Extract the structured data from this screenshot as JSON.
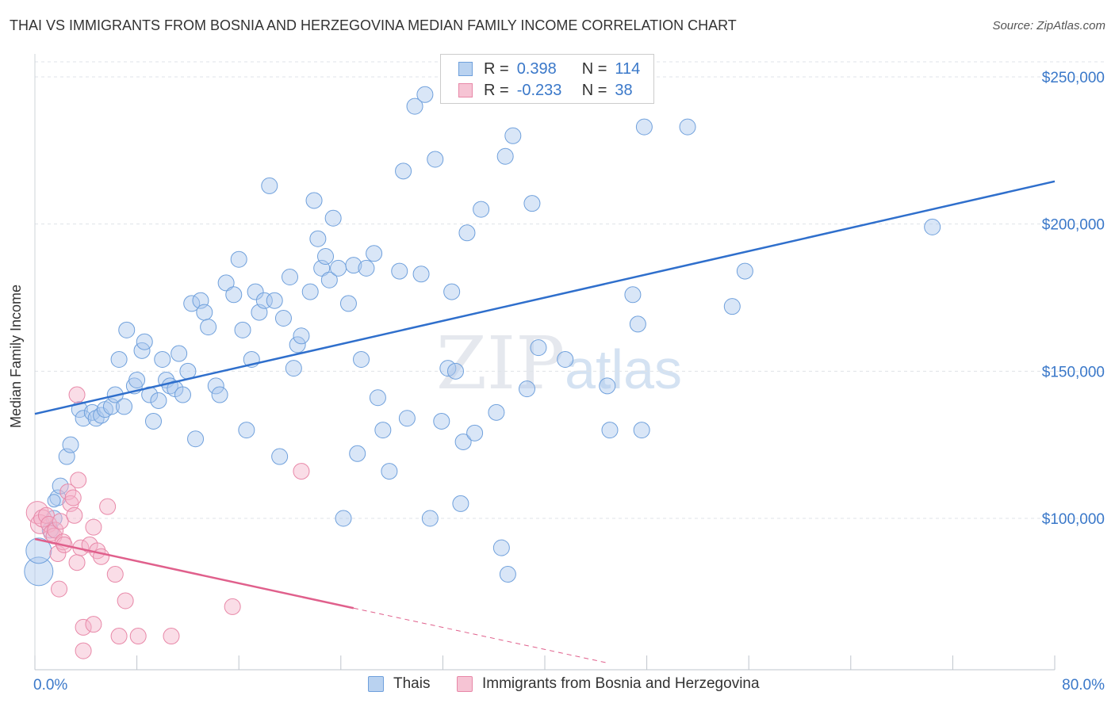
{
  "title": "THAI VS IMMIGRANTS FROM BOSNIA AND HERZEGOVINA MEDIAN FAMILY INCOME CORRELATION CHART",
  "source": "Source: ZipAtlas.com",
  "watermark": {
    "zip": "ZIP",
    "atlas": "atlas"
  },
  "legend": {
    "rows": [
      {
        "r_label": "R =",
        "r_value": "0.398",
        "n_label": "N =",
        "n_value": "114",
        "color": "#6fa0dc",
        "fill": "#b9d2f0"
      },
      {
        "r_label": "R =",
        "r_value": "-0.233",
        "n_label": "N =",
        "n_value": "38",
        "color": "#e888a8",
        "fill": "#f6c4d4"
      }
    ]
  },
  "bottom_legend": {
    "series1": "Thais",
    "series2": "Immigrants from Bosnia and Herzegovina"
  },
  "chart_data": {
    "type": "scatter",
    "title": "THAI VS IMMIGRANTS FROM BOSNIA AND HERZEGOVINA MEDIAN FAMILY INCOME CORRELATION CHART",
    "xlabel": "",
    "ylabel": "Median Family Income",
    "xlim": [
      0,
      80
    ],
    "ylim": [
      55000,
      260000
    ],
    "x_tick_labels": [
      "0.0%",
      "80.0%"
    ],
    "y_ticks": [
      100000,
      150000,
      200000,
      250000
    ],
    "y_tick_labels": [
      "$100,000",
      "$150,000",
      "$200,000",
      "$250,000"
    ],
    "grid": true,
    "legend_position": "top-center",
    "series": [
      {
        "name": "Thais",
        "color": "#6fa0dc",
        "trend": {
          "x": [
            0,
            80
          ],
          "y": [
            135500,
            214500
          ],
          "color": "#2f6fcc"
        },
        "points": [
          [
            0.3,
            82000,
            18
          ],
          [
            0.3,
            89000,
            16
          ],
          [
            1.2,
            96000,
            10
          ],
          [
            1.5,
            100000,
            10
          ],
          [
            1.8,
            107000,
            10
          ],
          [
            2,
            111000,
            10
          ],
          [
            1.5,
            106000,
            8
          ],
          [
            2.5,
            121000,
            10
          ],
          [
            2.8,
            125000,
            10
          ],
          [
            3.5,
            137000,
            10
          ],
          [
            3.8,
            134000,
            10
          ],
          [
            4.5,
            136000,
            10
          ],
          [
            4.8,
            134000,
            10
          ],
          [
            5.2,
            135000,
            10
          ],
          [
            5.5,
            137000,
            10
          ],
          [
            6,
            138000,
            10
          ],
          [
            6.3,
            142000,
            10
          ],
          [
            6.6,
            154000,
            10
          ],
          [
            7,
            138000,
            10
          ],
          [
            7.2,
            164000,
            10
          ],
          [
            7.8,
            145000,
            10
          ],
          [
            8,
            147000,
            10
          ],
          [
            8.4,
            157000,
            10
          ],
          [
            8.6,
            160000,
            10
          ],
          [
            9,
            142000,
            10
          ],
          [
            9.3,
            133000,
            10
          ],
          [
            9.7,
            140000,
            10
          ],
          [
            10,
            154000,
            10
          ],
          [
            10.3,
            147000,
            10
          ],
          [
            10.6,
            145000,
            10
          ],
          [
            11,
            144000,
            10
          ],
          [
            11.3,
            156000,
            10
          ],
          [
            11.6,
            142000,
            10
          ],
          [
            12,
            150000,
            10
          ],
          [
            12.3,
            173000,
            10
          ],
          [
            12.6,
            127000,
            10
          ],
          [
            13,
            174000,
            10
          ],
          [
            13.3,
            170000,
            10
          ],
          [
            13.6,
            165000,
            10
          ],
          [
            14.2,
            145000,
            10
          ],
          [
            14.5,
            142000,
            10
          ],
          [
            15,
            180000,
            10
          ],
          [
            15.6,
            176000,
            10
          ],
          [
            16,
            188000,
            10
          ],
          [
            16.3,
            164000,
            10
          ],
          [
            16.6,
            130000,
            10
          ],
          [
            17,
            154000,
            10
          ],
          [
            17.3,
            177000,
            10
          ],
          [
            17.6,
            170000,
            10
          ],
          [
            18,
            174000,
            10
          ],
          [
            18.4,
            213000,
            10
          ],
          [
            18.8,
            174000,
            10
          ],
          [
            19.2,
            121000,
            10
          ],
          [
            19.5,
            168000,
            10
          ],
          [
            20,
            182000,
            10
          ],
          [
            20.3,
            151000,
            10
          ],
          [
            20.6,
            159000,
            10
          ],
          [
            20.9,
            162000,
            10
          ],
          [
            21.6,
            177000,
            10
          ],
          [
            21.9,
            208000,
            10
          ],
          [
            22.2,
            195000,
            10
          ],
          [
            22.5,
            185000,
            10
          ],
          [
            22.8,
            189000,
            10
          ],
          [
            23.1,
            181000,
            10
          ],
          [
            23.4,
            202000,
            10
          ],
          [
            23.8,
            185000,
            10
          ],
          [
            24.2,
            100000,
            10
          ],
          [
            24.6,
            173000,
            10
          ],
          [
            25,
            186000,
            10
          ],
          [
            25.3,
            122000,
            10
          ],
          [
            25.6,
            154000,
            10
          ],
          [
            26,
            185000,
            10
          ],
          [
            26.6,
            190000,
            10
          ],
          [
            26.9,
            141000,
            10
          ],
          [
            27.3,
            130000,
            10
          ],
          [
            27.8,
            116000,
            10
          ],
          [
            28.6,
            184000,
            10
          ],
          [
            28.9,
            218000,
            10
          ],
          [
            29.2,
            134000,
            10
          ],
          [
            29.8,
            240000,
            10
          ],
          [
            30.3,
            183000,
            10
          ],
          [
            30.6,
            244000,
            10
          ],
          [
            31,
            100000,
            10
          ],
          [
            31.4,
            222000,
            10
          ],
          [
            31.9,
            133000,
            10
          ],
          [
            32.4,
            151000,
            10
          ],
          [
            32.7,
            177000,
            10
          ],
          [
            33,
            150000,
            10
          ],
          [
            33.4,
            105000,
            10
          ],
          [
            33.6,
            126000,
            10
          ],
          [
            33.9,
            197000,
            10
          ],
          [
            34.5,
            129000,
            10
          ],
          [
            35,
            205000,
            10
          ],
          [
            36.2,
            136000,
            10
          ],
          [
            36.6,
            90000,
            10
          ],
          [
            36.9,
            223000,
            10
          ],
          [
            37.1,
            81000,
            10
          ],
          [
            37.5,
            230000,
            10
          ],
          [
            38.6,
            144000,
            10
          ],
          [
            39,
            207000,
            10
          ],
          [
            39.5,
            158000,
            10
          ],
          [
            41.6,
            154000,
            10
          ],
          [
            44.9,
            145000,
            10
          ],
          [
            45.1,
            130000,
            10
          ],
          [
            46.9,
            176000,
            10
          ],
          [
            47.3,
            166000,
            10
          ],
          [
            47.6,
            130000,
            10
          ],
          [
            47.8,
            233000,
            10
          ],
          [
            51.2,
            233000,
            10
          ],
          [
            54.7,
            172000,
            10
          ],
          [
            55.7,
            184000,
            10
          ],
          [
            70.4,
            199000,
            10
          ]
        ]
      },
      {
        "name": "Immigrants from Bosnia and Herzegovina",
        "color": "#e888a8",
        "trend": {
          "x": [
            0,
            25
          ],
          "y": [
            93000,
            69500
          ],
          "dash_to": [
            45,
            50800
          ],
          "color": "#e0608c"
        },
        "points": [
          [
            0.2,
            102000,
            14
          ],
          [
            0.4,
            98000,
            12
          ],
          [
            0.6,
            100000,
            11
          ],
          [
            0.9,
            101000,
            10
          ],
          [
            1.1,
            98000,
            10
          ],
          [
            1.3,
            95000,
            10
          ],
          [
            1.5,
            94000,
            10
          ],
          [
            1.6,
            96000,
            10
          ],
          [
            1.8,
            88000,
            10
          ],
          [
            1.9,
            76000,
            10
          ],
          [
            2,
            99000,
            10
          ],
          [
            2.2,
            92000,
            10
          ],
          [
            2.3,
            91000,
            10
          ],
          [
            2.6,
            109000,
            10
          ],
          [
            2.8,
            105000,
            10
          ],
          [
            3,
            107000,
            10
          ],
          [
            3.1,
            101000,
            10
          ],
          [
            3.3,
            85000,
            10
          ],
          [
            3.4,
            113000,
            10
          ],
          [
            3.3,
            142000,
            10
          ],
          [
            3.6,
            90000,
            10
          ],
          [
            3.8,
            63000,
            10
          ],
          [
            3.8,
            55000,
            10
          ],
          [
            4.3,
            91000,
            10
          ],
          [
            4.6,
            97000,
            10
          ],
          [
            4.6,
            64000,
            10
          ],
          [
            4.9,
            89000,
            10
          ],
          [
            5.2,
            87000,
            10
          ],
          [
            5.7,
            104000,
            10
          ],
          [
            6.3,
            81000,
            10
          ],
          [
            6.6,
            60000,
            10
          ],
          [
            7.1,
            72000,
            10
          ],
          [
            8.1,
            60000,
            10
          ],
          [
            10.7,
            60000,
            10
          ],
          [
            15.5,
            70000,
            10
          ],
          [
            20.9,
            116000,
            10
          ]
        ]
      }
    ]
  }
}
